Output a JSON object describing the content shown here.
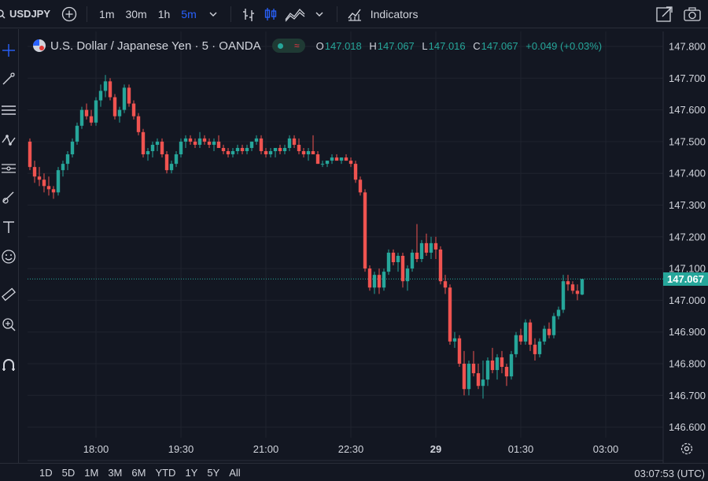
{
  "toolbar": {
    "symbol": "USDJPY",
    "intervals": [
      {
        "label": "1m",
        "active": false
      },
      {
        "label": "30m",
        "active": false
      },
      {
        "label": "1h",
        "active": false
      },
      {
        "label": "5m",
        "active": true
      }
    ],
    "indicators_label": "Indicators",
    "icons": [
      "add-symbol-icon",
      "chevron-down-icon",
      "bar-style-icon",
      "candle-style-icon",
      "area-style-icon",
      "indicators-icon",
      "fullscreen-icon",
      "camera-icon"
    ]
  },
  "left_tools": [
    "crosshair-icon",
    "trend-line-icon",
    "horizontal-lines-icon",
    "pattern-icon",
    "fib-icon",
    "brush-icon",
    "text-icon",
    "emoji-icon",
    "ruler-icon",
    "zoom-icon",
    "magnet-icon"
  ],
  "legend": {
    "title": "U.S. Dollar / Japanese Yen · 5 · OANDA",
    "o_label": "O",
    "o": "147.018",
    "h_label": "H",
    "h": "147.067",
    "l_label": "L",
    "l": "147.016",
    "c_label": "C",
    "c": "147.067",
    "change": "+0.049 (+0.03%)"
  },
  "bottom": {
    "ranges": [
      "1D",
      "5D",
      "1M",
      "3M",
      "6M",
      "YTD",
      "1Y",
      "5Y",
      "All"
    ],
    "clock": "03:07:53 (UTC)"
  },
  "colors": {
    "up": "#26a69a",
    "down": "#ef5350",
    "background": "#131722",
    "grid": "#1f232e",
    "text": "#d1d4dc"
  },
  "chart_data": {
    "type": "candlestick",
    "instrument": "U.S. Dollar / Japanese Yen",
    "interval": "5",
    "source": "OANDA",
    "y_ticks": [
      "147.800",
      "147.700",
      "147.600",
      "147.500",
      "147.400",
      "147.300",
      "147.200",
      "147.100",
      "147.000",
      "146.900",
      "146.800",
      "146.700",
      "146.600"
    ],
    "ylim": [
      146.58,
      147.82
    ],
    "x_ticks": [
      {
        "label": "18:00",
        "i": 14
      },
      {
        "label": "19:30",
        "i": 32
      },
      {
        "label": "21:00",
        "i": 50
      },
      {
        "label": "22:30",
        "i": 68
      },
      {
        "label": "29",
        "i": 86
      },
      {
        "label": "01:30",
        "i": 104
      },
      {
        "label": "03:00",
        "i": 122
      }
    ],
    "last_price": "147.067",
    "last_value": 147.067,
    "candles": [
      [
        147.5,
        147.51,
        147.41,
        147.42
      ],
      [
        147.42,
        147.44,
        147.37,
        147.39
      ],
      [
        147.39,
        147.42,
        147.36,
        147.38
      ],
      [
        147.38,
        147.4,
        147.34,
        147.36
      ],
      [
        147.36,
        147.39,
        147.33,
        147.35
      ],
      [
        147.35,
        147.36,
        147.32,
        147.34
      ],
      [
        147.34,
        147.42,
        147.33,
        147.41
      ],
      [
        147.41,
        147.44,
        147.39,
        147.43
      ],
      [
        147.43,
        147.47,
        147.41,
        147.46
      ],
      [
        147.46,
        147.51,
        147.45,
        147.5
      ],
      [
        147.5,
        147.56,
        147.49,
        147.55
      ],
      [
        147.55,
        147.61,
        147.54,
        147.6
      ],
      [
        147.6,
        147.62,
        147.57,
        147.58
      ],
      [
        147.58,
        147.6,
        147.55,
        147.56
      ],
      [
        147.56,
        147.64,
        147.55,
        147.63
      ],
      [
        147.63,
        147.68,
        147.61,
        147.66
      ],
      [
        147.66,
        147.71,
        147.64,
        147.69
      ],
      [
        147.69,
        147.7,
        147.63,
        147.64
      ],
      [
        147.64,
        147.65,
        147.57,
        147.58
      ],
      [
        147.58,
        147.61,
        147.56,
        147.6
      ],
      [
        147.6,
        147.68,
        147.59,
        147.67
      ],
      [
        147.67,
        147.68,
        147.61,
        147.62
      ],
      [
        147.62,
        147.63,
        147.57,
        147.58
      ],
      [
        147.58,
        147.59,
        147.52,
        147.53
      ],
      [
        147.53,
        147.54,
        147.45,
        147.46
      ],
      [
        147.46,
        147.48,
        147.44,
        147.47
      ],
      [
        147.47,
        147.5,
        147.45,
        147.49
      ],
      [
        147.49,
        147.51,
        147.47,
        147.5
      ],
      [
        147.5,
        147.51,
        147.45,
        147.46
      ],
      [
        147.46,
        147.47,
        147.4,
        147.41
      ],
      [
        147.41,
        147.44,
        147.4,
        147.43
      ],
      [
        147.43,
        147.47,
        147.42,
        147.46
      ],
      [
        147.46,
        147.51,
        147.45,
        147.5
      ],
      [
        147.5,
        147.52,
        147.48,
        147.51
      ],
      [
        147.51,
        147.52,
        147.49,
        147.5
      ],
      [
        147.5,
        147.51,
        147.48,
        147.49
      ],
      [
        147.49,
        147.53,
        147.48,
        147.51
      ],
      [
        147.51,
        147.52,
        147.49,
        147.5
      ],
      [
        147.5,
        147.51,
        147.48,
        147.49
      ],
      [
        147.49,
        147.51,
        147.47,
        147.5
      ],
      [
        147.5,
        147.52,
        147.48,
        147.48
      ],
      [
        147.48,
        147.49,
        147.46,
        147.47
      ],
      [
        147.47,
        147.48,
        147.45,
        147.46
      ],
      [
        147.46,
        147.48,
        147.45,
        147.47
      ],
      [
        147.47,
        147.49,
        147.46,
        147.48
      ],
      [
        147.48,
        147.49,
        147.46,
        147.47
      ],
      [
        147.47,
        147.49,
        147.46,
        147.48
      ],
      [
        147.48,
        147.5,
        147.47,
        147.5
      ],
      [
        147.5,
        147.52,
        147.49,
        147.51
      ],
      [
        147.51,
        147.52,
        147.46,
        147.47
      ],
      [
        147.47,
        147.48,
        147.45,
        147.46
      ],
      [
        147.46,
        147.48,
        147.45,
        147.47
      ],
      [
        147.47,
        147.48,
        147.45,
        147.48
      ],
      [
        147.48,
        147.49,
        147.46,
        147.47
      ],
      [
        147.47,
        147.49,
        147.46,
        147.48
      ],
      [
        147.48,
        147.52,
        147.47,
        147.51
      ],
      [
        147.51,
        147.52,
        147.48,
        147.49
      ],
      [
        147.49,
        147.51,
        147.46,
        147.47
      ],
      [
        147.47,
        147.48,
        147.45,
        147.46
      ],
      [
        147.46,
        147.48,
        147.44,
        147.47
      ],
      [
        147.47,
        147.52,
        147.46,
        147.46
      ],
      [
        147.46,
        147.47,
        147.43,
        147.43
      ],
      [
        147.43,
        147.44,
        147.42,
        147.43
      ],
      [
        147.43,
        147.44,
        147.42,
        147.44
      ],
      [
        147.44,
        147.46,
        147.43,
        147.45
      ],
      [
        147.45,
        147.46,
        147.44,
        147.44
      ],
      [
        147.44,
        147.45,
        147.43,
        147.45
      ],
      [
        147.45,
        147.46,
        147.44,
        147.44
      ],
      [
        147.44,
        147.45,
        147.42,
        147.43
      ],
      [
        147.43,
        147.44,
        147.37,
        147.38
      ],
      [
        147.38,
        147.39,
        147.33,
        147.34
      ],
      [
        147.34,
        147.35,
        147.09,
        147.1
      ],
      [
        147.1,
        147.11,
        147.03,
        147.04
      ],
      [
        147.04,
        147.09,
        147.02,
        147.08
      ],
      [
        147.08,
        147.1,
        147.02,
        147.04
      ],
      [
        147.04,
        147.1,
        147.03,
        147.09
      ],
      [
        147.09,
        147.16,
        147.08,
        147.15
      ],
      [
        147.15,
        147.16,
        147.11,
        147.12
      ],
      [
        147.12,
        147.15,
        147.09,
        147.14
      ],
      [
        147.14,
        147.15,
        147.04,
        147.06
      ],
      [
        147.06,
        147.11,
        147.03,
        147.1
      ],
      [
        147.1,
        147.16,
        147.09,
        147.15
      ],
      [
        147.15,
        147.24,
        147.12,
        147.13
      ],
      [
        147.13,
        147.19,
        147.12,
        147.18
      ],
      [
        147.18,
        147.21,
        147.14,
        147.15
      ],
      [
        147.15,
        147.2,
        147.13,
        147.18
      ],
      [
        147.18,
        147.2,
        147.13,
        147.16
      ],
      [
        147.16,
        147.17,
        147.05,
        147.06
      ],
      [
        147.06,
        147.08,
        147.02,
        147.04
      ],
      [
        147.04,
        147.05,
        146.86,
        146.87
      ],
      [
        146.87,
        146.9,
        146.85,
        146.88
      ],
      [
        146.88,
        146.89,
        146.79,
        146.8
      ],
      [
        146.8,
        146.84,
        146.7,
        146.72
      ],
      [
        146.72,
        146.81,
        146.7,
        146.8
      ],
      [
        146.8,
        146.84,
        146.76,
        146.77
      ],
      [
        146.77,
        146.8,
        146.72,
        146.73
      ],
      [
        146.73,
        146.81,
        146.69,
        146.75
      ],
      [
        146.75,
        146.82,
        146.73,
        146.81
      ],
      [
        146.81,
        146.85,
        146.77,
        146.78
      ],
      [
        146.78,
        146.83,
        146.75,
        146.82
      ],
      [
        146.82,
        146.84,
        146.77,
        146.79
      ],
      [
        146.79,
        146.8,
        146.73,
        146.76
      ],
      [
        146.76,
        146.84,
        146.75,
        146.83
      ],
      [
        146.83,
        146.9,
        146.82,
        146.89
      ],
      [
        146.89,
        146.91,
        146.86,
        146.87
      ],
      [
        146.87,
        146.94,
        146.86,
        146.93
      ],
      [
        146.93,
        146.94,
        146.84,
        146.86
      ],
      [
        146.86,
        146.88,
        146.81,
        146.83
      ],
      [
        146.83,
        146.88,
        146.82,
        146.87
      ],
      [
        146.87,
        146.92,
        146.86,
        146.91
      ],
      [
        146.91,
        146.93,
        146.88,
        146.89
      ],
      [
        146.89,
        146.96,
        146.88,
        146.95
      ],
      [
        146.95,
        146.98,
        146.94,
        146.97
      ],
      [
        146.97,
        147.08,
        146.96,
        147.06
      ],
      [
        147.06,
        147.08,
        147.03,
        147.05
      ],
      [
        147.05,
        147.06,
        147.02,
        147.03
      ],
      [
        147.03,
        147.05,
        147.0,
        147.02
      ],
      [
        147.018,
        147.067,
        147.016,
        147.067
      ]
    ]
  }
}
